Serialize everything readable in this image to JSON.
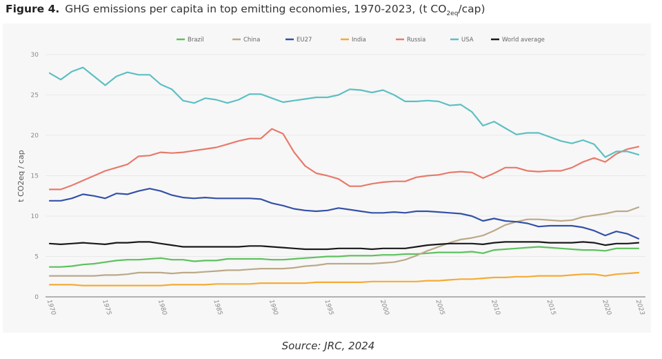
{
  "figure": {
    "number_label": "Figure 4.",
    "title_main": "GHG emissions per capita in top emitting economies, 1970-2023, (t CO",
    "title_sub": "2eq",
    "title_end": "/cap)",
    "source": "Source: JRC, 2024"
  },
  "chart_data": {
    "type": "line",
    "title": "GHG emissions per capita in top emitting economies, 1970-2023, (t CO2eq/cap)",
    "xlabel": "",
    "ylabel": "t CO2eq / cap",
    "xlim": [
      1970,
      2023
    ],
    "ylim": [
      0,
      30
    ],
    "grid": true,
    "legend_position": "top-center",
    "x_ticks": [
      "1970",
      "1975",
      "1980",
      "1985",
      "1990",
      "1995",
      "2000",
      "2005",
      "2010",
      "2015",
      "2020",
      "2023"
    ],
    "y_ticks": [
      "0",
      "5",
      "10",
      "15",
      "20",
      "25",
      "30"
    ],
    "x": [
      1970,
      1971,
      1972,
      1973,
      1974,
      1975,
      1976,
      1977,
      1978,
      1979,
      1980,
      1981,
      1982,
      1983,
      1984,
      1985,
      1986,
      1987,
      1988,
      1989,
      1990,
      1991,
      1992,
      1993,
      1994,
      1995,
      1996,
      1997,
      1998,
      1999,
      2000,
      2001,
      2002,
      2003,
      2004,
      2005,
      2006,
      2007,
      2008,
      2009,
      2010,
      2011,
      2012,
      2013,
      2014,
      2015,
      2016,
      2017,
      2018,
      2019,
      2020,
      2021,
      2022,
      2023
    ],
    "series": [
      {
        "name": "Brazil",
        "color": "#5cc15c",
        "values": [
          3.7,
          3.7,
          3.8,
          4.0,
          4.1,
          4.3,
          4.5,
          4.6,
          4.6,
          4.7,
          4.8,
          4.6,
          4.6,
          4.4,
          4.5,
          4.5,
          4.7,
          4.7,
          4.7,
          4.7,
          4.6,
          4.6,
          4.7,
          4.8,
          4.9,
          5.0,
          5.0,
          5.1,
          5.1,
          5.1,
          5.2,
          5.2,
          5.3,
          5.3,
          5.4,
          5.5,
          5.5,
          5.5,
          5.6,
          5.4,
          5.8,
          5.9,
          6.0,
          6.1,
          6.2,
          6.1,
          6.0,
          5.9,
          5.8,
          5.8,
          5.7,
          6.0,
          6.0,
          6.0
        ]
      },
      {
        "name": "China",
        "color": "#bca888",
        "values": [
          2.6,
          2.6,
          2.6,
          2.6,
          2.6,
          2.7,
          2.7,
          2.8,
          3.0,
          3.0,
          3.0,
          2.9,
          3.0,
          3.0,
          3.1,
          3.2,
          3.3,
          3.3,
          3.4,
          3.5,
          3.5,
          3.5,
          3.6,
          3.8,
          3.9,
          4.1,
          4.1,
          4.1,
          4.1,
          4.1,
          4.2,
          4.3,
          4.6,
          5.1,
          5.7,
          6.2,
          6.7,
          7.1,
          7.3,
          7.6,
          8.2,
          8.9,
          9.3,
          9.6,
          9.6,
          9.5,
          9.4,
          9.5,
          9.9,
          10.1,
          10.3,
          10.6,
          10.6,
          11.1
        ]
      },
      {
        "name": "EU27",
        "color": "#3350a8",
        "values": [
          11.9,
          11.9,
          12.2,
          12.7,
          12.5,
          12.2,
          12.8,
          12.7,
          13.1,
          13.4,
          13.1,
          12.6,
          12.3,
          12.2,
          12.3,
          12.2,
          12.2,
          12.2,
          12.2,
          12.1,
          11.6,
          11.3,
          10.9,
          10.7,
          10.6,
          10.7,
          11.0,
          10.8,
          10.6,
          10.4,
          10.4,
          10.5,
          10.4,
          10.6,
          10.6,
          10.5,
          10.4,
          10.3,
          10.0,
          9.4,
          9.7,
          9.4,
          9.3,
          9.1,
          8.7,
          8.8,
          8.8,
          8.8,
          8.6,
          8.2,
          7.6,
          8.1,
          7.8,
          7.2
        ]
      },
      {
        "name": "India",
        "color": "#f5ab35",
        "values": [
          1.5,
          1.5,
          1.5,
          1.4,
          1.4,
          1.4,
          1.4,
          1.4,
          1.4,
          1.4,
          1.4,
          1.5,
          1.5,
          1.5,
          1.5,
          1.6,
          1.6,
          1.6,
          1.6,
          1.7,
          1.7,
          1.7,
          1.7,
          1.7,
          1.8,
          1.8,
          1.8,
          1.8,
          1.8,
          1.9,
          1.9,
          1.9,
          1.9,
          1.9,
          2.0,
          2.0,
          2.1,
          2.2,
          2.2,
          2.3,
          2.4,
          2.4,
          2.5,
          2.5,
          2.6,
          2.6,
          2.6,
          2.7,
          2.8,
          2.8,
          2.6,
          2.8,
          2.9,
          3.0
        ]
      },
      {
        "name": "Russia",
        "color": "#e8796a",
        "values": [
          13.3,
          13.3,
          13.8,
          14.4,
          15.0,
          15.6,
          16.0,
          16.4,
          17.4,
          17.5,
          17.9,
          17.8,
          17.9,
          18.1,
          18.3,
          18.5,
          18.9,
          19.3,
          19.6,
          19.6,
          20.8,
          20.2,
          17.9,
          16.2,
          15.3,
          15.0,
          14.6,
          13.7,
          13.7,
          14.0,
          14.2,
          14.3,
          14.3,
          14.8,
          15.0,
          15.1,
          15.4,
          15.5,
          15.4,
          14.7,
          15.3,
          16.0,
          16.0,
          15.6,
          15.5,
          15.6,
          15.6,
          16.0,
          16.7,
          17.2,
          16.7,
          17.7,
          18.3,
          18.6
        ]
      },
      {
        "name": "USA",
        "color": "#5dbfc2",
        "values": [
          27.7,
          26.9,
          27.9,
          28.4,
          27.3,
          26.2,
          27.3,
          27.8,
          27.5,
          27.5,
          26.3,
          25.7,
          24.3,
          24.0,
          24.6,
          24.4,
          24.0,
          24.4,
          25.1,
          25.1,
          24.6,
          24.1,
          24.3,
          24.5,
          24.7,
          24.7,
          25.0,
          25.7,
          25.6,
          25.3,
          25.6,
          25.0,
          24.2,
          24.2,
          24.3,
          24.2,
          23.7,
          23.8,
          22.9,
          21.2,
          21.7,
          20.9,
          20.1,
          20.3,
          20.3,
          19.8,
          19.3,
          19.0,
          19.4,
          18.9,
          17.3,
          18.0,
          18.0,
          17.6
        ]
      },
      {
        "name": "World average",
        "color": "#1a1a1a",
        "values": [
          6.6,
          6.5,
          6.6,
          6.7,
          6.6,
          6.5,
          6.7,
          6.7,
          6.8,
          6.8,
          6.6,
          6.4,
          6.2,
          6.2,
          6.2,
          6.2,
          6.2,
          6.2,
          6.3,
          6.3,
          6.2,
          6.1,
          6.0,
          5.9,
          5.9,
          5.9,
          6.0,
          6.0,
          6.0,
          5.9,
          6.0,
          6.0,
          6.0,
          6.2,
          6.4,
          6.5,
          6.6,
          6.6,
          6.6,
          6.5,
          6.7,
          6.8,
          6.8,
          6.8,
          6.8,
          6.7,
          6.7,
          6.7,
          6.8,
          6.7,
          6.4,
          6.6,
          6.6,
          6.7
        ]
      }
    ]
  }
}
